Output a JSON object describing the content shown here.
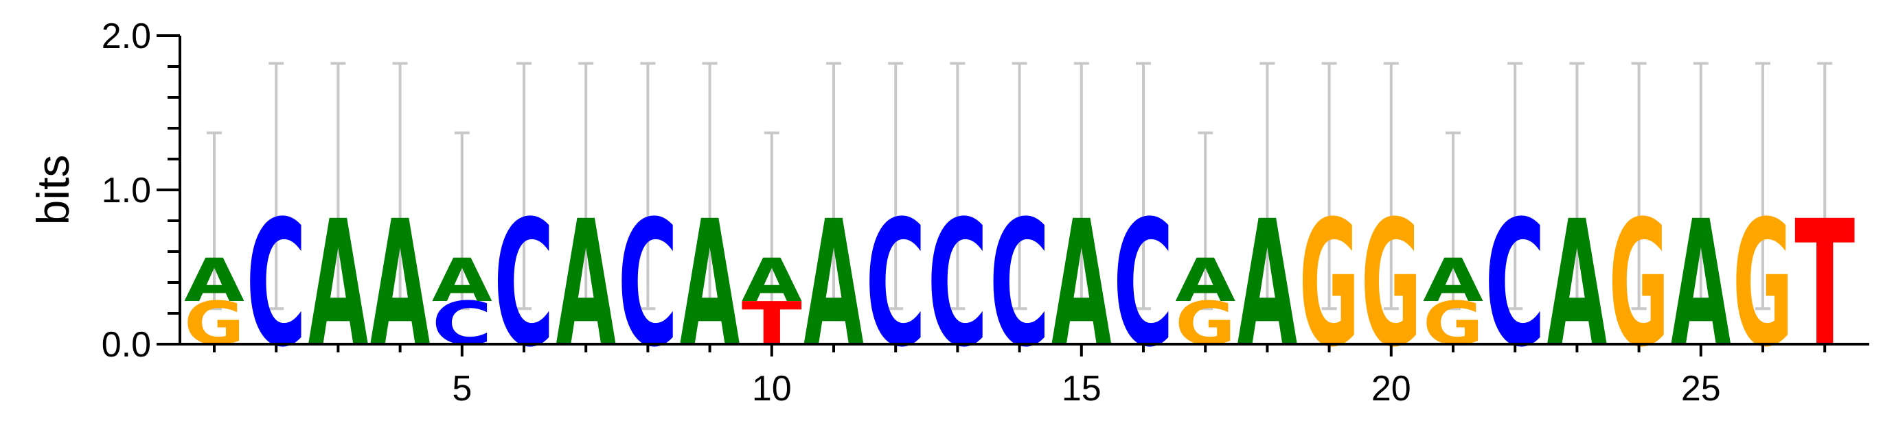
{
  "chart_data": {
    "type": "sequence-logo",
    "ylabel": "bits",
    "ylim": [
      0,
      2
    ],
    "y_ticks": [
      "0.0",
      "1.0",
      "2.0"
    ],
    "x_ticks": [
      "5",
      "10",
      "15",
      "20",
      "25"
    ],
    "x_tick_values": [
      5,
      10,
      15,
      20,
      25
    ],
    "n_positions": 27,
    "colors": {
      "A": "#008000",
      "C": "#0000ff",
      "G": "#ffa500",
      "T": "#ff0000"
    },
    "error_bar_color": "#c8c8c8",
    "positions": [
      {
        "pos": 1,
        "stack": [
          {
            "letter": "G",
            "height": 0.28
          },
          {
            "letter": "A",
            "height": 0.28
          }
        ],
        "error": [
          0.23,
          1.37
        ]
      },
      {
        "pos": 2,
        "stack": [
          {
            "letter": "C",
            "height": 0.82
          }
        ],
        "error": [
          0.23,
          1.82
        ]
      },
      {
        "pos": 3,
        "stack": [
          {
            "letter": "A",
            "height": 0.82
          }
        ],
        "error": [
          0.23,
          1.82
        ]
      },
      {
        "pos": 4,
        "stack": [
          {
            "letter": "A",
            "height": 0.82
          }
        ],
        "error": [
          0.23,
          1.82
        ]
      },
      {
        "pos": 5,
        "stack": [
          {
            "letter": "C",
            "height": 0.28
          },
          {
            "letter": "A",
            "height": 0.28
          }
        ],
        "error": [
          0.23,
          1.37
        ]
      },
      {
        "pos": 6,
        "stack": [
          {
            "letter": "C",
            "height": 0.82
          }
        ],
        "error": [
          0.23,
          1.82
        ]
      },
      {
        "pos": 7,
        "stack": [
          {
            "letter": "A",
            "height": 0.82
          }
        ],
        "error": [
          0.23,
          1.82
        ]
      },
      {
        "pos": 8,
        "stack": [
          {
            "letter": "C",
            "height": 0.82
          }
        ],
        "error": [
          0.23,
          1.82
        ]
      },
      {
        "pos": 9,
        "stack": [
          {
            "letter": "A",
            "height": 0.82
          }
        ],
        "error": [
          0.23,
          1.82
        ]
      },
      {
        "pos": 10,
        "stack": [
          {
            "letter": "T",
            "height": 0.28
          },
          {
            "letter": "A",
            "height": 0.28
          }
        ],
        "error": [
          0.23,
          1.37
        ]
      },
      {
        "pos": 11,
        "stack": [
          {
            "letter": "A",
            "height": 0.82
          }
        ],
        "error": [
          0.23,
          1.82
        ]
      },
      {
        "pos": 12,
        "stack": [
          {
            "letter": "C",
            "height": 0.82
          }
        ],
        "error": [
          0.23,
          1.82
        ]
      },
      {
        "pos": 13,
        "stack": [
          {
            "letter": "C",
            "height": 0.82
          }
        ],
        "error": [
          0.23,
          1.82
        ]
      },
      {
        "pos": 14,
        "stack": [
          {
            "letter": "C",
            "height": 0.82
          }
        ],
        "error": [
          0.23,
          1.82
        ]
      },
      {
        "pos": 15,
        "stack": [
          {
            "letter": "A",
            "height": 0.82
          }
        ],
        "error": [
          0.23,
          1.82
        ]
      },
      {
        "pos": 16,
        "stack": [
          {
            "letter": "C",
            "height": 0.82
          }
        ],
        "error": [
          0.23,
          1.82
        ]
      },
      {
        "pos": 17,
        "stack": [
          {
            "letter": "G",
            "height": 0.28
          },
          {
            "letter": "A",
            "height": 0.28
          }
        ],
        "error": [
          0.23,
          1.37
        ]
      },
      {
        "pos": 18,
        "stack": [
          {
            "letter": "A",
            "height": 0.82
          }
        ],
        "error": [
          0.23,
          1.82
        ]
      },
      {
        "pos": 19,
        "stack": [
          {
            "letter": "G",
            "height": 0.82
          }
        ],
        "error": [
          0.23,
          1.82
        ]
      },
      {
        "pos": 20,
        "stack": [
          {
            "letter": "G",
            "height": 0.82
          }
        ],
        "error": [
          0.23,
          1.82
        ]
      },
      {
        "pos": 21,
        "stack": [
          {
            "letter": "G",
            "height": 0.28
          },
          {
            "letter": "A",
            "height": 0.28
          }
        ],
        "error": [
          0.23,
          1.37
        ]
      },
      {
        "pos": 22,
        "stack": [
          {
            "letter": "C",
            "height": 0.82
          }
        ],
        "error": [
          0.23,
          1.82
        ]
      },
      {
        "pos": 23,
        "stack": [
          {
            "letter": "A",
            "height": 0.82
          }
        ],
        "error": [
          0.23,
          1.82
        ]
      },
      {
        "pos": 24,
        "stack": [
          {
            "letter": "G",
            "height": 0.82
          }
        ],
        "error": [
          0.23,
          1.82
        ]
      },
      {
        "pos": 25,
        "stack": [
          {
            "letter": "A",
            "height": 0.82
          }
        ],
        "error": [
          0.23,
          1.82
        ]
      },
      {
        "pos": 26,
        "stack": [
          {
            "letter": "G",
            "height": 0.82
          }
        ],
        "error": [
          0.23,
          1.82
        ]
      },
      {
        "pos": 27,
        "stack": [
          {
            "letter": "T",
            "height": 0.82
          }
        ],
        "error": [
          0.23,
          1.82
        ]
      }
    ]
  }
}
